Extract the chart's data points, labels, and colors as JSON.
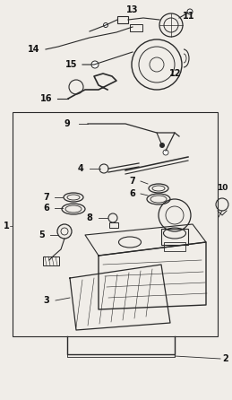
{
  "bg_color": "#f0ede8",
  "line_color": "#2a2a2a",
  "text_color": "#111111",
  "figsize": [
    2.59,
    4.46
  ],
  "dpi": 100
}
